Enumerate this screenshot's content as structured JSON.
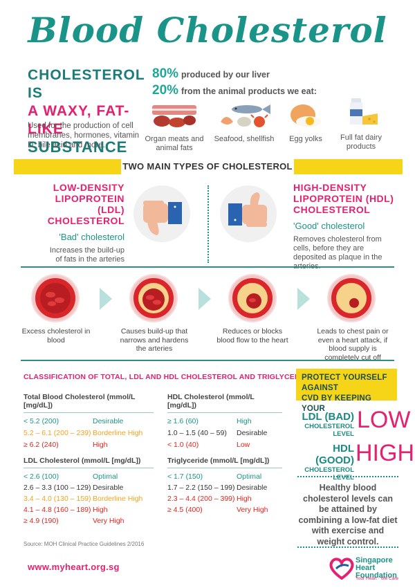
{
  "title": "Blood Cholesterol",
  "definition": {
    "line1": "CHOLESTEROL IS",
    "line2": "A WAXY, FAT-LIKE",
    "line3": "SUBSTANCE",
    "uses": "Used for the production of cell membranes, hormones, vitamin D, bile acid and more."
  },
  "sources": {
    "liver_pct": "80%",
    "liver_text": "produced by our liver",
    "animal_pct": "20%",
    "animal_text": "from the animal products we eat:",
    "foods": [
      {
        "label": "Organ meats and animal fats",
        "icon": "meat-icon"
      },
      {
        "label": "Seafood, shellfish",
        "icon": "seafood-icon"
      },
      {
        "label": "Egg yolks",
        "icon": "egg-icon"
      },
      {
        "label": "Full fat dairy products",
        "icon": "dairy-icon"
      }
    ]
  },
  "types_banner": "TWO MAIN TYPES OF CHOLESTEROL",
  "ldl": {
    "title": "LOW-DENSITY LIPOPROTEIN (LDL) CHOLESTEROL",
    "sub": "'Bad' cholesterol",
    "desc": "Increases the build-up of fats in the arteries"
  },
  "hdl": {
    "title": "HIGH-DENSITY LIPOPROTEIN (HDL) CHOLESTEROL",
    "sub": "'Good' cholesterol",
    "desc": "Removes cholesterol from cells, before they are deposited as plaque in the arteries."
  },
  "steps": [
    "Excess cholesterol in blood",
    "Causes build-up that narrows and hardens the arteries",
    "Reduces or blocks blood flow to the heart",
    "Leads to chest pain or even a heart attack, if blood supply is completely cut off"
  ],
  "classification": {
    "title": "CLASSIFICATION OF TOTAL, LDL AND HDL CHOLESTEROL AND TRIGLYCERIDE LEVELS",
    "tables": [
      {
        "head": "Total Blood Cholesterol (mmol/L [mg/dL])",
        "rows": [
          {
            "v": "< 5.2 (200)",
            "l": "Desirable",
            "c": "teal"
          },
          {
            "v": "5.2 – 6.1 (200 – 239)",
            "l": "Borderline High",
            "c": "orange"
          },
          {
            "v": "≥ 6.2 (240)",
            "l": "High",
            "c": "red"
          }
        ]
      },
      {
        "head": "HDL Cholesterol (mmol/L [mg/dL])",
        "rows": [
          {
            "v": "≥ 1.6 (60)",
            "l": "High",
            "c": "teal"
          },
          {
            "v": "1.0 – 1.5 (40 – 59)",
            "l": "Desirable",
            "c": "dark"
          },
          {
            "v": "< 1.0 (40)",
            "l": "Low",
            "c": "red"
          }
        ]
      },
      {
        "head": "LDL Cholesterol (mmol/L [mg/dL])",
        "rows": [
          {
            "v": "< 2.6 (100)",
            "l": "Optimal",
            "c": "teal"
          },
          {
            "v": "2.6 – 3.3 (100 – 129)",
            "l": "Desirable",
            "c": "dark"
          },
          {
            "v": "3.4 – 4.0 (130 – 159)",
            "l": "Borderline High",
            "c": "orange"
          },
          {
            "v": "4.1 – 4.8 (160 – 189)",
            "l": "High",
            "c": "red"
          },
          {
            "v": "≥ 4.9 (190)",
            "l": "Very High",
            "c": "red"
          }
        ]
      },
      {
        "head": "Triglyceride (mmol/L [mg/dL])",
        "rows": [
          {
            "v": "< 1.7 (150)",
            "l": "Optimal",
            "c": "teal"
          },
          {
            "v": "1.7 – 2.2 (150 – 199)",
            "l": "Desirable",
            "c": "dark"
          },
          {
            "v": "2.3 – 4.4 (200 – 399)",
            "l": "High",
            "c": "red"
          },
          {
            "v": "≥ 4.5 (400)",
            "l": "Very High",
            "c": "red"
          }
        ]
      }
    ],
    "source": "Source: MOH Clinical Practice Guidelines 2/2016"
  },
  "protect": {
    "line1": "PROTECT YOURSELF AGAINST",
    "line2": "CVD BY KEEPING YOUR",
    "ldl_name": "LDL (BAD)",
    "ldl_sub": "CHOLESTEROL LEVEL",
    "ldl_big": "LOW",
    "hdl_name": "HDL (GOOD)",
    "hdl_sub": "CHOLESTEROL LEVEL",
    "hdl_big": "HIGH",
    "healthy": "Healthy blood cholesterol levels can be attained by combining a low-fat diet with exercise and weight control."
  },
  "url": "www.myheart.org.sg",
  "logo": {
    "line1": "Singapore",
    "line2": "Heart",
    "line3": "Foundation",
    "tag": "Your Heart · We Care"
  },
  "colors": {
    "teal": "#1a9489",
    "magenta": "#e5206e",
    "yellow": "#f6d418",
    "red": "#d9262a",
    "orange": "#f5a21b"
  }
}
